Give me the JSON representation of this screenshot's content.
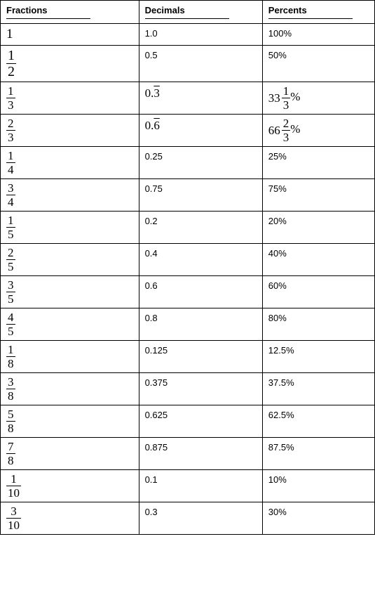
{
  "headers": {
    "fractions": "Fractions",
    "decimals": "Decimals",
    "percents": "Percents"
  },
  "rows": [
    {
      "fraction": {
        "type": "whole",
        "value": "1"
      },
      "decimal": "1.0",
      "percent": {
        "type": "plain",
        "text": "100%"
      }
    },
    {
      "fraction": {
        "type": "frac",
        "num": "1",
        "den": "2",
        "big": true
      },
      "decimal": "0.5",
      "percent": {
        "type": "plain",
        "text": "50%"
      }
    },
    {
      "fraction": {
        "type": "frac",
        "num": "1",
        "den": "3"
      },
      "decimal_repeating": {
        "prefix": "0.",
        "rep": "3"
      },
      "percent": {
        "type": "mixed",
        "int": "33",
        "num": "1",
        "den": "3",
        "suffix": "%"
      }
    },
    {
      "fraction": {
        "type": "frac",
        "num": "2",
        "den": "3"
      },
      "decimal_repeating": {
        "prefix": "0.",
        "rep": "6"
      },
      "percent": {
        "type": "mixed",
        "int": "66",
        "num": "2",
        "den": "3",
        "suffix": "%"
      }
    },
    {
      "fraction": {
        "type": "frac",
        "num": "1",
        "den": "4"
      },
      "decimal": "0.25",
      "percent": {
        "type": "plain",
        "text": "25%"
      }
    },
    {
      "fraction": {
        "type": "frac",
        "num": "3",
        "den": "4"
      },
      "decimal": "0.75",
      "percent": {
        "type": "plain",
        "text": "75%"
      }
    },
    {
      "fraction": {
        "type": "frac",
        "num": "1",
        "den": "5"
      },
      "decimal": "0.2",
      "percent": {
        "type": "plain",
        "text": "20%"
      }
    },
    {
      "fraction": {
        "type": "frac",
        "num": "2",
        "den": "5"
      },
      "decimal": "0.4",
      "percent": {
        "type": "plain",
        "text": "40%"
      }
    },
    {
      "fraction": {
        "type": "frac",
        "num": "3",
        "den": "5"
      },
      "decimal": "0.6",
      "percent": {
        "type": "plain",
        "text": "60%"
      }
    },
    {
      "fraction": {
        "type": "frac",
        "num": "4",
        "den": "5"
      },
      "decimal": "0.8",
      "percent": {
        "type": "plain",
        "text": "80%"
      }
    },
    {
      "fraction": {
        "type": "frac",
        "num": "1",
        "den": "8"
      },
      "decimal": "0.125",
      "percent": {
        "type": "plain",
        "text": "12.5%"
      }
    },
    {
      "fraction": {
        "type": "frac",
        "num": "3",
        "den": "8"
      },
      "decimal": "0.375",
      "percent": {
        "type": "plain",
        "text": "37.5%"
      }
    },
    {
      "fraction": {
        "type": "frac",
        "num": "5",
        "den": "8"
      },
      "decimal": "0.625",
      "percent": {
        "type": "plain",
        "text": "62.5%"
      }
    },
    {
      "fraction": {
        "type": "frac",
        "num": "7",
        "den": "8"
      },
      "decimal": "0.875",
      "percent": {
        "type": "plain",
        "text": "87.5%"
      }
    },
    {
      "fraction": {
        "type": "frac",
        "num": "1",
        "den": "10"
      },
      "decimal": "0.1",
      "percent": {
        "type": "plain",
        "text": "10%"
      }
    },
    {
      "fraction": {
        "type": "frac",
        "num": "3",
        "den": "10"
      },
      "decimal": "0.3",
      "percent": {
        "type": "plain",
        "text": "30%"
      }
    }
  ],
  "style": {
    "border_color": "#000000",
    "background_color": "#ffffff",
    "header_fontsize": 13,
    "cell_fontsize": 13,
    "fraction_fontsize": 17
  }
}
